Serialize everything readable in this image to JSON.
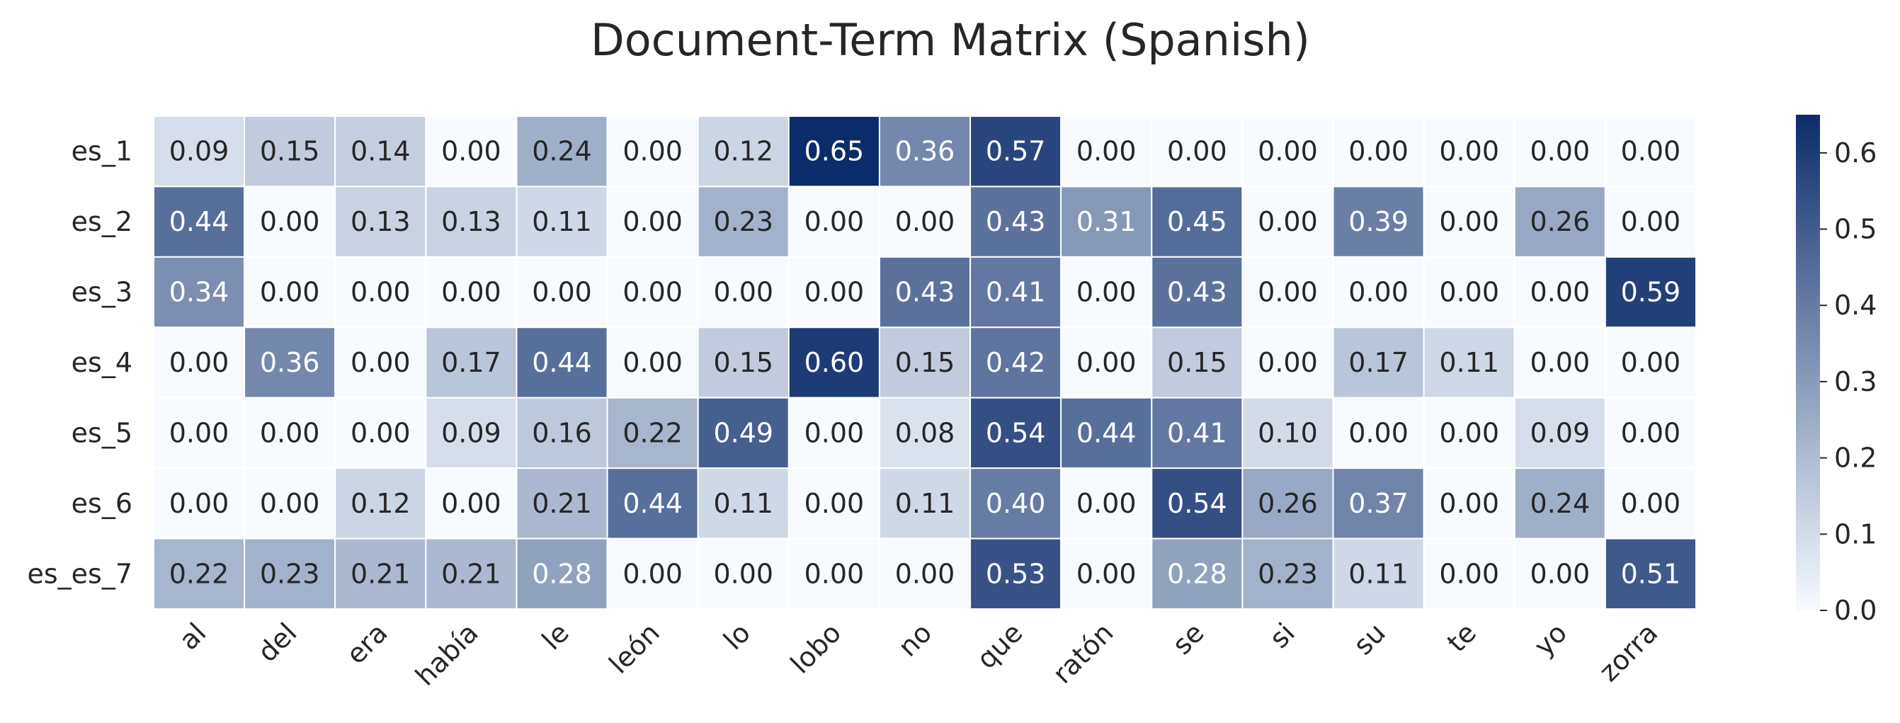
{
  "chart_data": {
    "type": "heatmap",
    "title": "Document-Term Matrix (Spanish)",
    "rows": [
      "es_1",
      "es_2",
      "es_3",
      "es_4",
      "es_5",
      "es_6",
      "es_es_7"
    ],
    "columns": [
      "al",
      "del",
      "era",
      "había",
      "le",
      "león",
      "lo",
      "lobo",
      "no",
      "que",
      "ratón",
      "se",
      "si",
      "su",
      "te",
      "yo",
      "zorra"
    ],
    "values": [
      [
        0.09,
        0.15,
        0.14,
        0.0,
        0.24,
        0.0,
        0.12,
        0.65,
        0.36,
        0.57,
        0.0,
        0.0,
        0.0,
        0.0,
        0.0,
        0.0,
        0.0
      ],
      [
        0.44,
        0.0,
        0.13,
        0.13,
        0.11,
        0.0,
        0.23,
        0.0,
        0.0,
        0.43,
        0.31,
        0.45,
        0.0,
        0.39,
        0.0,
        0.26,
        0.0
      ],
      [
        0.34,
        0.0,
        0.0,
        0.0,
        0.0,
        0.0,
        0.0,
        0.0,
        0.43,
        0.41,
        0.0,
        0.43,
        0.0,
        0.0,
        0.0,
        0.0,
        0.59
      ],
      [
        0.0,
        0.36,
        0.0,
        0.17,
        0.44,
        0.0,
        0.15,
        0.6,
        0.15,
        0.42,
        0.0,
        0.15,
        0.0,
        0.17,
        0.11,
        0.0,
        0.0
      ],
      [
        0.0,
        0.0,
        0.0,
        0.09,
        0.16,
        0.22,
        0.49,
        0.0,
        0.08,
        0.54,
        0.44,
        0.41,
        0.1,
        0.0,
        0.0,
        0.09,
        0.0
      ],
      [
        0.0,
        0.0,
        0.12,
        0.0,
        0.21,
        0.44,
        0.11,
        0.0,
        0.11,
        0.4,
        0.0,
        0.54,
        0.26,
        0.37,
        0.0,
        0.24,
        0.0
      ],
      [
        0.22,
        0.23,
        0.21,
        0.21,
        0.28,
        0.0,
        0.0,
        0.0,
        0.0,
        0.53,
        0.0,
        0.28,
        0.23,
        0.11,
        0.0,
        0.0,
        0.51
      ]
    ],
    "value_format": "0.00",
    "colorbar": {
      "min": 0.0,
      "max": 0.65,
      "ticks": [
        "0.0",
        "0.1",
        "0.2",
        "0.3",
        "0.4",
        "0.5",
        "0.6"
      ],
      "tick_values": [
        0.0,
        0.1,
        0.2,
        0.3,
        0.4,
        0.5,
        0.6
      ],
      "color_low": "#f7fbff",
      "color_high": "#0b2c6b"
    },
    "colors": {
      "text_dark": "#262626",
      "text_light": "#ffffff",
      "grid_line": "#ffffff"
    }
  }
}
